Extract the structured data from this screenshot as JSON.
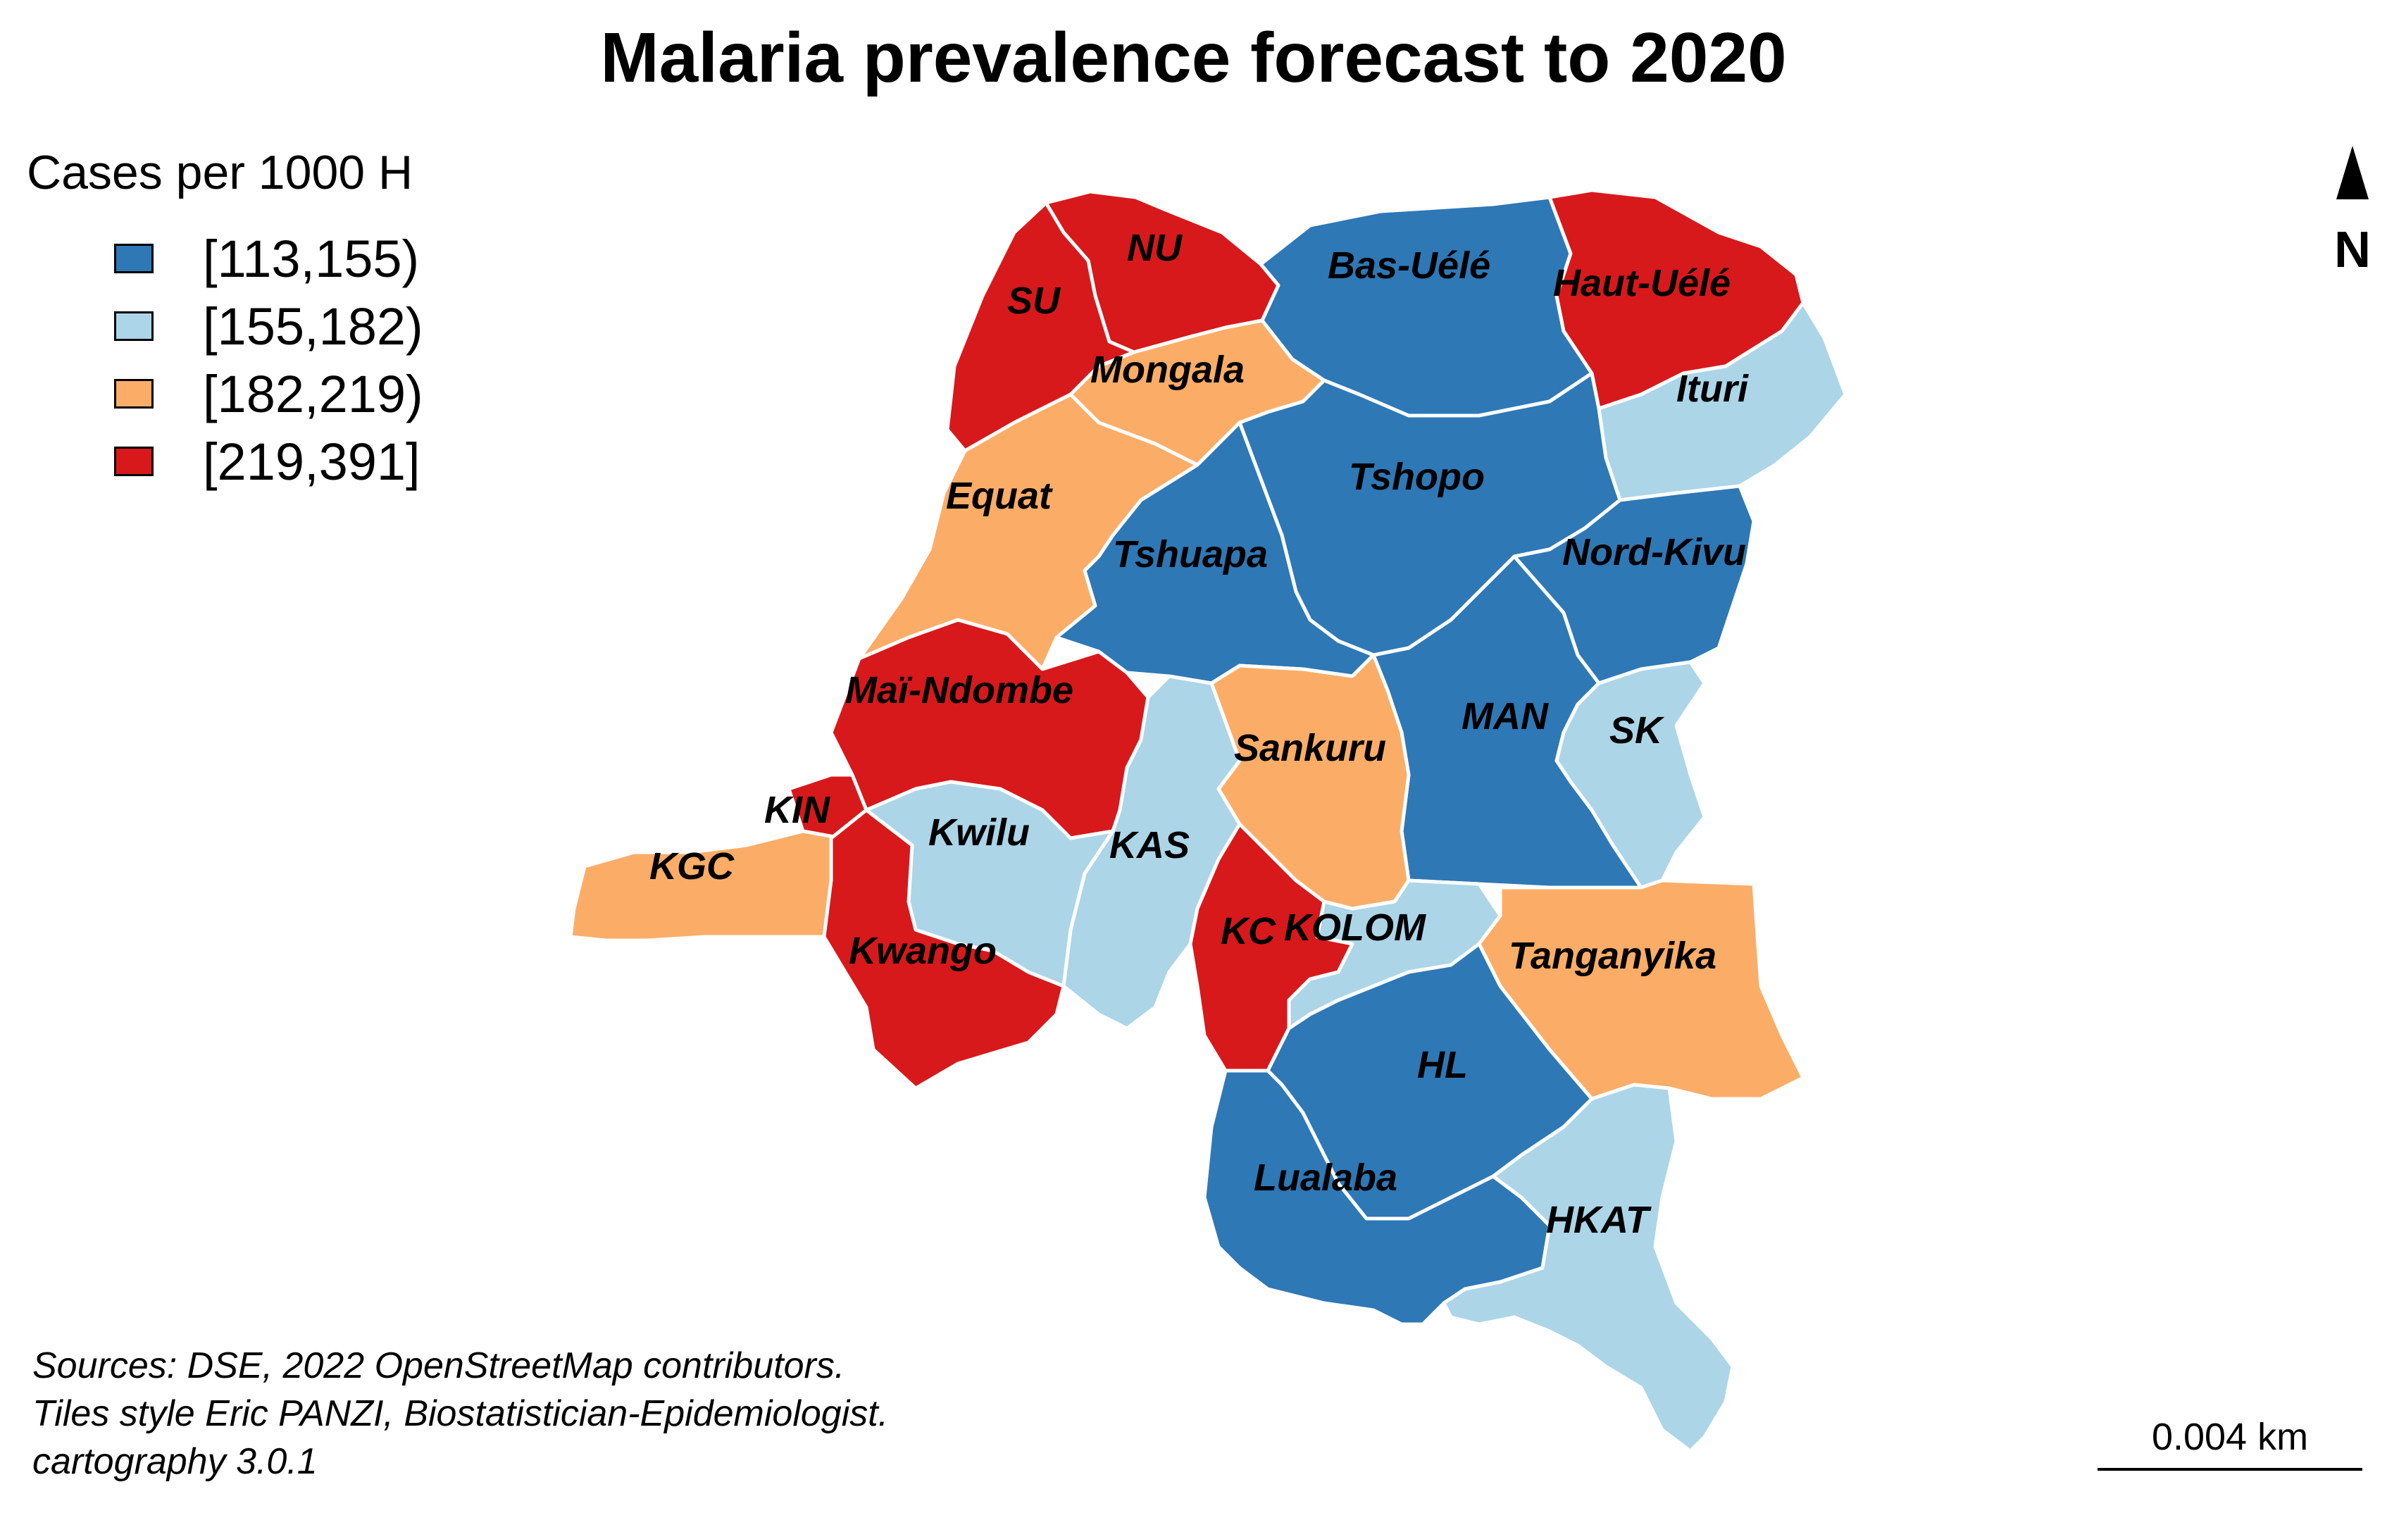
{
  "title": "Malaria prevalence forecast to 2020",
  "legend": {
    "title": "Cases per 1000 H",
    "classes": [
      {
        "label": "[113,155)",
        "color": "#2e78b6"
      },
      {
        "label": "[155,182)",
        "color": "#acd5e8"
      },
      {
        "label": "[182,219)",
        "color": "#fbad68"
      },
      {
        "label": "[219,391]",
        "color": "#d7191c"
      }
    ]
  },
  "north_arrow": {
    "label": "N"
  },
  "scale_bar": {
    "label": "0.004 km"
  },
  "sources": {
    "line1": "Sources: DSE, 2022 OpenStreetMap contributors.",
    "line2": "Tiles style Eric PANZI, Biostatistician-Epidemiologist.",
    "line3": "cartography 3.0.1"
  },
  "provinces": [
    {
      "name": "NU",
      "class": 3
    },
    {
      "name": "SU",
      "class": 3
    },
    {
      "name": "Bas-Uélé",
      "class": 0
    },
    {
      "name": "Haut-Uélé",
      "class": 3
    },
    {
      "name": "Mongala",
      "class": 2
    },
    {
      "name": "Ituri",
      "class": 1
    },
    {
      "name": "Equat",
      "class": 2
    },
    {
      "name": "Tshopo",
      "class": 0
    },
    {
      "name": "Tshuapa",
      "class": 0
    },
    {
      "name": "Nord-Kivu",
      "class": 0
    },
    {
      "name": "Maï-Ndombe",
      "class": 3
    },
    {
      "name": "MAN",
      "class": 0
    },
    {
      "name": "SK",
      "class": 1
    },
    {
      "name": "Sankuru",
      "class": 2
    },
    {
      "name": "KIN",
      "class": 3
    },
    {
      "name": "Kwilu",
      "class": 1
    },
    {
      "name": "KAS",
      "class": 1
    },
    {
      "name": "KGC",
      "class": 2
    },
    {
      "name": "KC",
      "class": 3
    },
    {
      "name": "KOLOM",
      "class": 1
    },
    {
      "name": "Kwango",
      "class": 3
    },
    {
      "name": "Tanganyika",
      "class": 2
    },
    {
      "name": "HL",
      "class": 0
    },
    {
      "name": "Lualaba",
      "class": 0
    },
    {
      "name": "HKAT",
      "class": 1
    }
  ]
}
